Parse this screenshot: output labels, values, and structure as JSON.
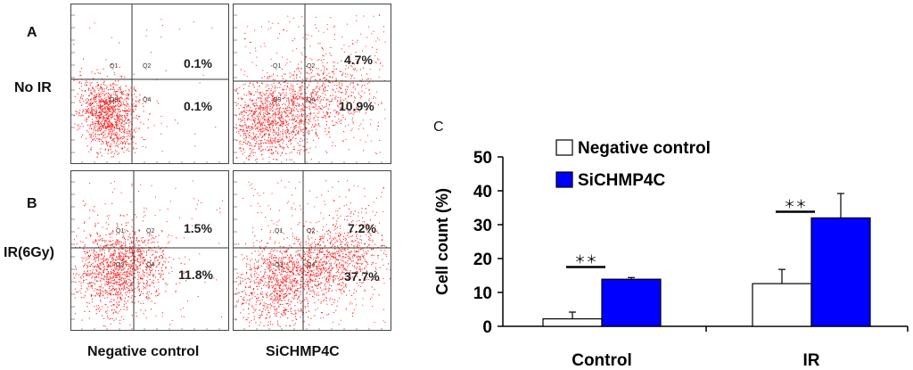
{
  "panel_labels": {
    "a": "A",
    "b": "B",
    "c": "C"
  },
  "row_labels": {
    "no_ir": "No IR",
    "ir": "IR(6Gy)"
  },
  "column_labels": {
    "negative": "Negative control",
    "sichmp4c": "SiCHMP4C"
  },
  "quadrant_labels": {
    "q1": "Q1",
    "q2": "Q2",
    "q3": "Q3",
    "q4": "Q4"
  },
  "flow_plots": {
    "noir_neg": {
      "q2_percent": "0.1%",
      "q4_percent": "0.1%"
    },
    "noir_si": {
      "q2_percent": "4.7%",
      "q4_percent": "10.9%"
    },
    "ir_neg": {
      "q2_percent": "1.5%",
      "q4_percent": "11.8%"
    },
    "ir_si": {
      "q2_percent": "7.2%",
      "q4_percent": "37.7%"
    }
  },
  "colors": {
    "dots": "#ff2020",
    "negative": "#ffffff",
    "sichmp4c": "#0000ff",
    "axis": "#000000"
  },
  "chart_data": {
    "type": "bar",
    "categories": [
      "Control",
      "IR"
    ],
    "series": [
      {
        "name": "Negative control",
        "values": [
          2.2,
          12.6
        ],
        "errors": [
          2.0,
          4.2
        ]
      },
      {
        "name": "SiCHMP4C",
        "values": [
          13.9,
          32.0
        ],
        "errors": [
          0.5,
          7.2
        ]
      }
    ],
    "ylabel": "Cell count (%)",
    "xlabel": "",
    "ylim": [
      0,
      50
    ],
    "yticks": [
      0,
      10,
      20,
      30,
      40,
      50
    ],
    "significance": [
      "＊＊",
      "＊＊"
    ],
    "legend": "top-left",
    "grid": false
  }
}
